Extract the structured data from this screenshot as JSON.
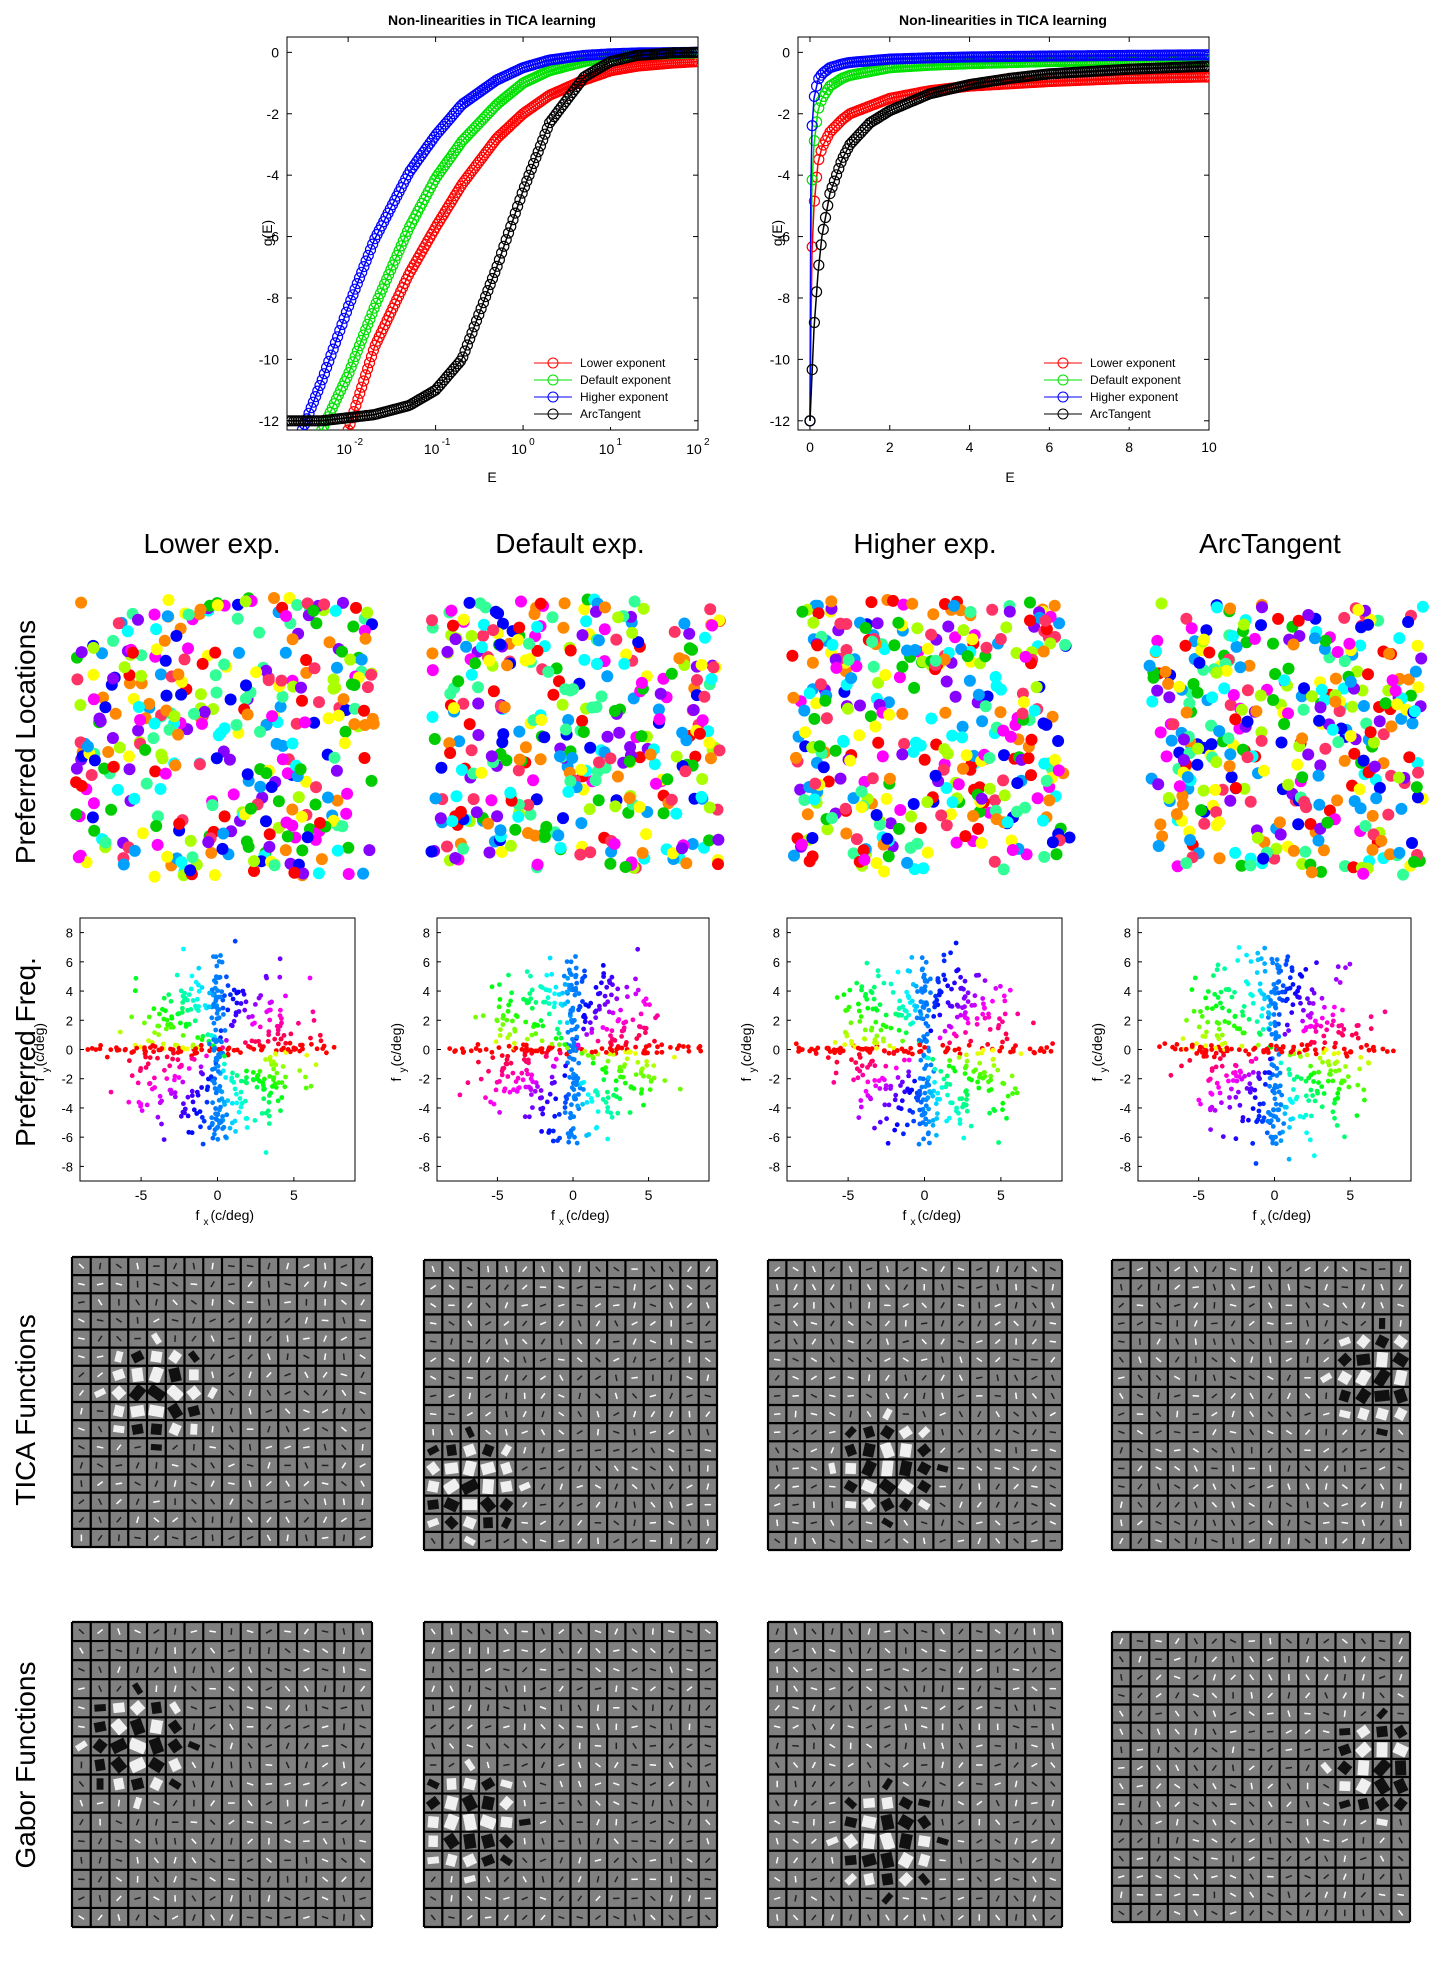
{
  "colors": {
    "lower": "#ff0000",
    "default": "#00e000",
    "higher": "#0000ff",
    "arctan": "#000000",
    "filter_bg": "#808080",
    "grid_line": "#000000"
  },
  "column_titles": [
    "Lower exp.",
    "Default exp.",
    "Higher exp.",
    "ArcTangent"
  ],
  "row_titles": [
    "Preferred Locations",
    "Preferred Freq.",
    "TICA Functions",
    "Gabor Functions"
  ],
  "chart_data": [
    {
      "type": "line",
      "title": "Non-linearities in TICA learning",
      "xlabel": "E",
      "ylabel": "g(E)",
      "xscale": "log",
      "xlim": [
        0.002,
        100
      ],
      "ylim": [
        -12.3,
        0.5
      ],
      "xticks": [
        0.01,
        0.1,
        1,
        10,
        100
      ],
      "xtick_labels": [
        {
          "base": "10",
          "exp": "-2"
        },
        {
          "base": "10",
          "exp": "-1"
        },
        {
          "base": "10",
          "exp": "0"
        },
        {
          "base": "10",
          "exp": "1"
        },
        {
          "base": "10",
          "exp": "2"
        }
      ],
      "yticks": [
        0,
        -2,
        -4,
        -6,
        -8,
        -10,
        -12
      ],
      "legend_position": "lower-right",
      "series": [
        {
          "name": "Lower exponent",
          "color": "#ff0000",
          "x": [
            0.01,
            0.02,
            0.05,
            0.1,
            0.2,
            0.5,
            1,
            2,
            5,
            10,
            20,
            50,
            100
          ],
          "y": [
            -12.3,
            -9.6,
            -7.2,
            -5.7,
            -4.3,
            -2.8,
            -2.0,
            -1.4,
            -0.9,
            -0.6,
            -0.45,
            -0.35,
            -0.3
          ]
        },
        {
          "name": "Default exponent",
          "color": "#00e000",
          "x": [
            0.005,
            0.01,
            0.02,
            0.05,
            0.1,
            0.2,
            0.5,
            1,
            2,
            5,
            10,
            20,
            50,
            100
          ],
          "y": [
            -12.3,
            -10.5,
            -8.3,
            -5.7,
            -4.1,
            -2.9,
            -1.7,
            -1.0,
            -0.6,
            -0.3,
            -0.15,
            -0.08,
            -0.04,
            -0.02
          ]
        },
        {
          "name": "Higher exponent",
          "color": "#0000ff",
          "x": [
            0.003,
            0.005,
            0.01,
            0.02,
            0.05,
            0.1,
            0.2,
            0.5,
            1,
            2,
            5,
            10,
            20,
            50,
            100
          ],
          "y": [
            -12.3,
            -10.7,
            -8.3,
            -6.1,
            -3.9,
            -2.7,
            -1.7,
            -0.9,
            -0.5,
            -0.25,
            -0.1,
            -0.05,
            -0.02,
            -0.01,
            0
          ]
        },
        {
          "name": "ArcTangent",
          "color": "#000000",
          "x": [
            0.002,
            0.005,
            0.01,
            0.02,
            0.05,
            0.1,
            0.2,
            0.5,
            1,
            2,
            5,
            10,
            20,
            50,
            100
          ],
          "y": [
            -12.0,
            -12.0,
            -11.9,
            -11.8,
            -11.5,
            -11.0,
            -10.0,
            -7.0,
            -4.5,
            -2.3,
            -0.8,
            -0.3,
            -0.1,
            -0.02,
            0
          ]
        }
      ]
    },
    {
      "type": "line",
      "title": "Non-linearities in TICA learning",
      "xlabel": "E",
      "ylabel": "g(E)",
      "xscale": "linear",
      "xlim": [
        -0.3,
        10
      ],
      "ylim": [
        -12.3,
        0.5
      ],
      "xticks": [
        0,
        2,
        4,
        6,
        8,
        10
      ],
      "yticks": [
        0,
        -2,
        -4,
        -6,
        -8,
        -10,
        -12
      ],
      "legend_position": "lower-right",
      "series": [
        {
          "name": "Lower exponent",
          "color": "#ff0000",
          "x": [
            0,
            0.02,
            0.05,
            0.1,
            0.2,
            0.3,
            0.5,
            0.8,
            1,
            2,
            3,
            4,
            6,
            8,
            10
          ],
          "y": [
            -12,
            -9.5,
            -6.5,
            -5.0,
            -3.6,
            -3.1,
            -2.6,
            -2.2,
            -2.0,
            -1.5,
            -1.25,
            -1.1,
            -0.95,
            -0.85,
            -0.8
          ]
        },
        {
          "name": "Default exponent",
          "color": "#00e000",
          "x": [
            0,
            0.02,
            0.05,
            0.1,
            0.2,
            0.3,
            0.5,
            0.8,
            1,
            2,
            3,
            4,
            6,
            8,
            10
          ],
          "y": [
            -12,
            -7.0,
            -4.3,
            -3.0,
            -1.9,
            -1.5,
            -1.1,
            -0.85,
            -0.75,
            -0.5,
            -0.42,
            -0.37,
            -0.3,
            -0.27,
            -0.25
          ]
        },
        {
          "name": "Higher exponent",
          "color": "#0000ff",
          "x": [
            0,
            0.02,
            0.05,
            0.1,
            0.2,
            0.3,
            0.5,
            0.8,
            1,
            2,
            3,
            4,
            6,
            8,
            10
          ],
          "y": [
            -12,
            -4.5,
            -2.5,
            -1.5,
            -0.9,
            -0.7,
            -0.5,
            -0.38,
            -0.33,
            -0.22,
            -0.18,
            -0.15,
            -0.12,
            -0.1,
            -0.08
          ]
        },
        {
          "name": "ArcTangent",
          "color": "#000000",
          "x": [
            0,
            0.05,
            0.1,
            0.2,
            0.3,
            0.5,
            0.8,
            1,
            1.5,
            2,
            3,
            4,
            5,
            6,
            8,
            10
          ],
          "y": [
            -12,
            -10.5,
            -9.0,
            -7.2,
            -6.0,
            -4.6,
            -3.5,
            -3.0,
            -2.3,
            -1.9,
            -1.35,
            -1.05,
            -0.85,
            -0.7,
            -0.55,
            -0.45
          ]
        }
      ]
    },
    {
      "type": "scatter",
      "panel": "Preferred Freq. — Lower exp.",
      "xlabel": {
        "main": "f",
        "sub": "x",
        "unit": " (c/deg)"
      },
      "ylabel": {
        "main": "f",
        "sub": "y",
        "unit": " (c/deg)"
      },
      "xlim": [
        -9,
        9
      ],
      "ylim": [
        -9,
        9
      ],
      "xticks": [
        -5,
        0,
        5
      ],
      "yticks": [
        8,
        6,
        4,
        2,
        0,
        -2,
        -4,
        -6,
        -8
      ],
      "color_by": "orientation"
    },
    {
      "type": "scatter",
      "panel": "Preferred Freq. — Default exp.",
      "xlabel": {
        "main": "f",
        "sub": "x",
        "unit": " (c/deg)"
      },
      "ylabel": {
        "main": "f",
        "sub": "y",
        "unit": " (c/deg)"
      },
      "xlim": [
        -9,
        9
      ],
      "ylim": [
        -9,
        9
      ],
      "xticks": [
        -5,
        0,
        5
      ],
      "yticks": [
        8,
        6,
        4,
        2,
        0,
        -2,
        -4,
        -6,
        -8
      ],
      "color_by": "orientation"
    },
    {
      "type": "scatter",
      "panel": "Preferred Freq. — Higher exp.",
      "xlabel": {
        "main": "f",
        "sub": "x",
        "unit": " (c/deg)"
      },
      "ylabel": {
        "main": "f",
        "sub": "y",
        "unit": " (c/deg)"
      },
      "xlim": [
        -9,
        9
      ],
      "ylim": [
        -9,
        9
      ],
      "xticks": [
        -5,
        0,
        5
      ],
      "yticks": [
        8,
        6,
        4,
        2,
        0,
        -2,
        -4,
        -6,
        -8
      ],
      "color_by": "orientation"
    },
    {
      "type": "scatter",
      "panel": "Preferred Freq. — ArcTangent",
      "xlabel": {
        "main": "f",
        "sub": "x",
        "unit": " (c/deg)"
      },
      "ylabel": {
        "main": "f",
        "sub": "y",
        "unit": " (c/deg)"
      },
      "xlim": [
        -9,
        9
      ],
      "ylim": [
        -9,
        9
      ],
      "xticks": [
        -5,
        0,
        5
      ],
      "yticks": [
        8,
        6,
        4,
        2,
        0,
        -2,
        -4,
        -6,
        -8
      ],
      "color_by": "orientation"
    }
  ]
}
